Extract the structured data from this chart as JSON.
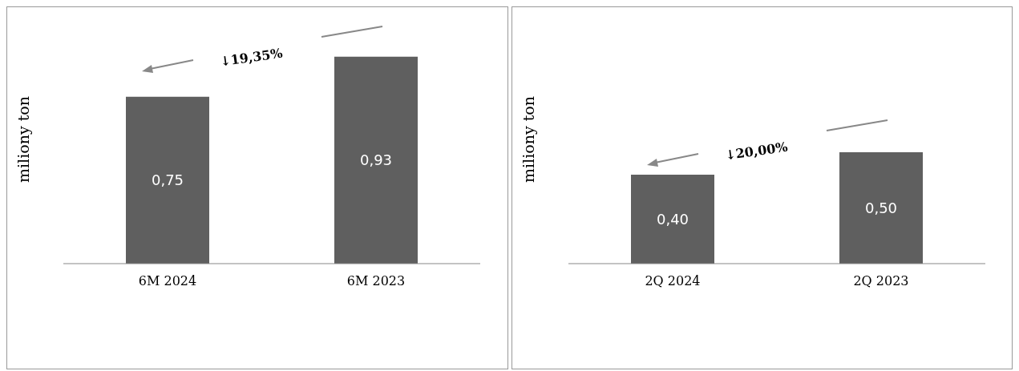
{
  "chart_data": [
    {
      "type": "bar",
      "ylabel": "miliony ton",
      "categories": [
        "6M 2024",
        "6M 2023"
      ],
      "values": [
        0.75,
        0.93
      ],
      "value_labels": [
        "0,75",
        "0,93"
      ],
      "color": "#5f5f5f",
      "annotations": [
        "↓19,35%"
      ]
    },
    {
      "type": "bar",
      "ylabel": "miliony ton",
      "categories": [
        "2Q 2024",
        "2Q 2023"
      ],
      "values": [
        0.4,
        0.5
      ],
      "value_labels": [
        "0,40",
        "0,50"
      ],
      "color": "#5f5f5f",
      "annotations": [
        "↓20,00%"
      ]
    }
  ]
}
